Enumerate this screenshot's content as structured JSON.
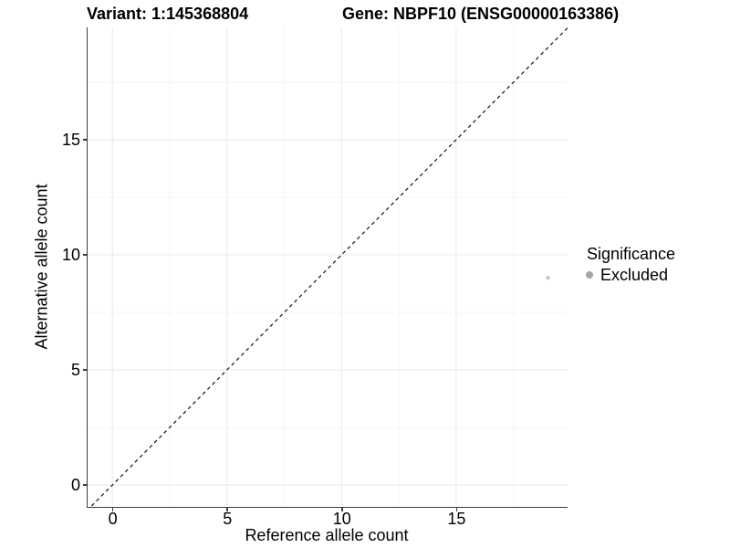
{
  "header": {
    "variant_title": "Variant: 1:145368804",
    "gene_title": "Gene: NBPF10 (ENSG00000163386)"
  },
  "legend": {
    "title": "Significance",
    "items": [
      {
        "label": "Excluded",
        "color": "#a4a4a4"
      }
    ]
  },
  "colors": {
    "background": "#ffffff",
    "axis_line": "#3c3c3c",
    "major_gridline": "#e9e9e9",
    "minor_gridline": "#f5f5f5",
    "identity_line": "#111111",
    "point": "#c6c6c6",
    "text": "#000000"
  },
  "chart_data": {
    "type": "scatter",
    "title": "Variant: 1:145368804 | Gene: NBPF10 (ENSG00000163386)",
    "xlabel": "Reference allele count",
    "ylabel": "Alternative allele count",
    "xlim": [
      -1.08,
      19.86
    ],
    "ylim": [
      -0.91,
      19.88
    ],
    "x_ticks": [
      0,
      5,
      10,
      15
    ],
    "y_ticks": [
      0,
      5,
      10,
      15
    ],
    "x_minor_gridlines": [
      2.5,
      7.5,
      12.5,
      17.5
    ],
    "y_minor_gridlines": [
      2.5,
      7.5,
      12.5,
      17.5
    ],
    "grid": "on",
    "legend_position": "right",
    "series": [
      {
        "name": "Excluded",
        "points": [
          {
            "x": 19,
            "y": 9
          }
        ],
        "color": "#c6c6c6",
        "point_radius_px": 2.2
      }
    ],
    "identity_line": {
      "style": "dashed",
      "color": "#111111",
      "from": -0.91,
      "to": 19.86
    }
  }
}
